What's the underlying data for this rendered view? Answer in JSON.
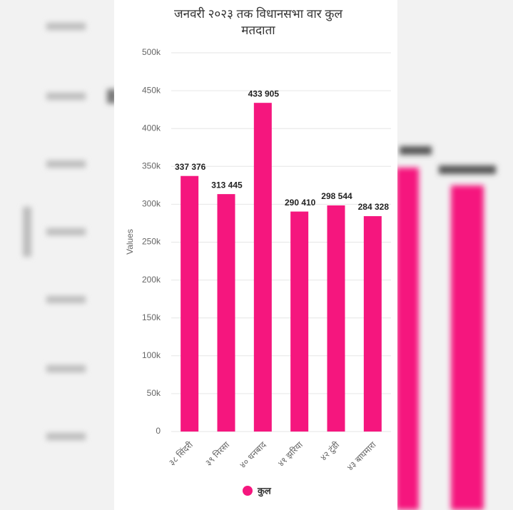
{
  "chart_data": {
    "type": "bar",
    "title": "जनवरी २०२३ तक विधानसभा वार कुल मतदाता",
    "y_label": "Values",
    "categories": [
      "३८ सिंदरी",
      "३९ निरसा",
      "४० धनबाद",
      "४१ झरिया",
      "४२ टुंडी",
      "४३ बाघमारा"
    ],
    "series": [
      {
        "name": "कुल",
        "color": "#f5167e",
        "values": [
          337376,
          313445,
          433905,
          290410,
          298544,
          284328
        ],
        "value_labels": [
          "337 376",
          "313 445",
          "433 905",
          "290 410",
          "298 544",
          "284 328"
        ]
      }
    ],
    "ylim": [
      0,
      500000
    ],
    "yticks": [
      0,
      {
        "value": 50000,
        "label": "50k"
      },
      {
        "value": 100000,
        "label": "100k"
      },
      {
        "value": 150000,
        "label": "150k"
      },
      {
        "value": 200000,
        "label": "200k"
      },
      {
        "value": 250000,
        "label": "250k"
      },
      {
        "value": 300000,
        "label": "300k"
      },
      {
        "value": 350000,
        "label": "350k"
      },
      {
        "value": 400000,
        "label": "400k"
      },
      {
        "value": 450000,
        "label": "450k"
      },
      {
        "value": 500000,
        "label": "500k"
      }
    ],
    "grid": true
  }
}
